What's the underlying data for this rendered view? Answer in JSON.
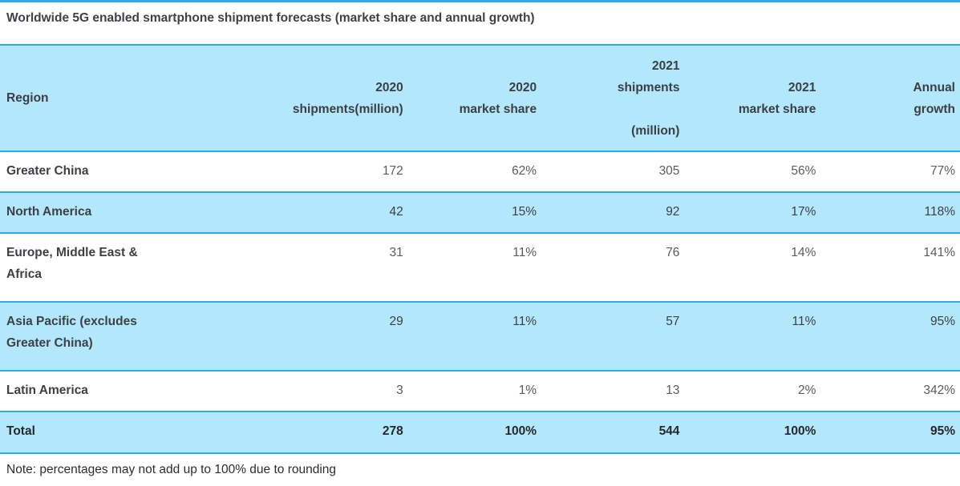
{
  "page": {
    "title": "Worldwide 5G enabled smartphone shipment forecasts (market share and annual growth)",
    "note": "Note: percentages may not add up to 100% due to rounding"
  },
  "colors": {
    "accent_cyan_border": "#2aaee5",
    "row_highlight_blue": "#b3e7fc",
    "heading_text": "#3c3e41",
    "number_text": "#595b5e"
  },
  "table": {
    "columns": [
      {
        "key": "region",
        "label": "Region"
      },
      {
        "key": "shipments_2020",
        "label": "2020\nshipments(million)"
      },
      {
        "key": "share_2020",
        "label": "2020\nmarket share"
      },
      {
        "key": "shipments_2021",
        "label": "2021\nshipments\n\n(million)"
      },
      {
        "key": "share_2021",
        "label": "2021\nmarket share"
      },
      {
        "key": "annual_growth",
        "label": "Annual\ngrowth"
      }
    ],
    "rows": [
      {
        "region": "Greater China",
        "shipments_2020": "172",
        "share_2020": "62%",
        "shipments_2021": "305",
        "share_2021": "56%",
        "annual_growth": "77%"
      },
      {
        "region": "North America",
        "shipments_2020": "42",
        "share_2020": "15%",
        "shipments_2021": "92",
        "share_2021": "17%",
        "annual_growth": "118%"
      },
      {
        "region": "Europe, Middle East & Africa",
        "shipments_2020": "31",
        "share_2020": "11%",
        "shipments_2021": "76",
        "share_2021": "14%",
        "annual_growth": "141%"
      },
      {
        "region": "Asia Pacific (excludes Greater China)",
        "shipments_2020": "29",
        "share_2020": "11%",
        "shipments_2021": "57",
        "share_2021": "11%",
        "annual_growth": "95%"
      },
      {
        "region": "Latin America",
        "shipments_2020": "3",
        "share_2020": "1%",
        "shipments_2021": "13",
        "share_2021": "2%",
        "annual_growth": "342%"
      },
      {
        "region": "Total",
        "shipments_2020": "278",
        "share_2020": "100%",
        "shipments_2021": "544",
        "share_2021": "100%",
        "annual_growth": "95%"
      }
    ]
  },
  "chart_data": {
    "type": "table",
    "title": "Worldwide 5G enabled smartphone shipment forecasts (market share and annual growth)",
    "columns": [
      "Region",
      "2020 shipments(million)",
      "2020 market share",
      "2021 shipments (million)",
      "2021 market share",
      "Annual growth"
    ],
    "rows": [
      [
        "Greater China",
        172,
        "62%",
        305,
        "56%",
        "77%"
      ],
      [
        "North America",
        42,
        "15%",
        92,
        "17%",
        "118%"
      ],
      [
        "Europe, Middle East & Africa",
        31,
        "11%",
        76,
        "14%",
        "141%"
      ],
      [
        "Asia Pacific (excludes Greater China)",
        29,
        "11%",
        57,
        "11%",
        "95%"
      ],
      [
        "Latin America",
        3,
        "1%",
        13,
        "2%",
        "342%"
      ],
      [
        "Total",
        278,
        "100%",
        544,
        "100%",
        "95%"
      ]
    ],
    "note": "Note: percentages may not add up to 100% due to rounding",
    "layout": {
      "row_striping": "white / light-blue alternating",
      "numeric_alignment": "right",
      "grid": "horizontal cyan rules only"
    }
  }
}
